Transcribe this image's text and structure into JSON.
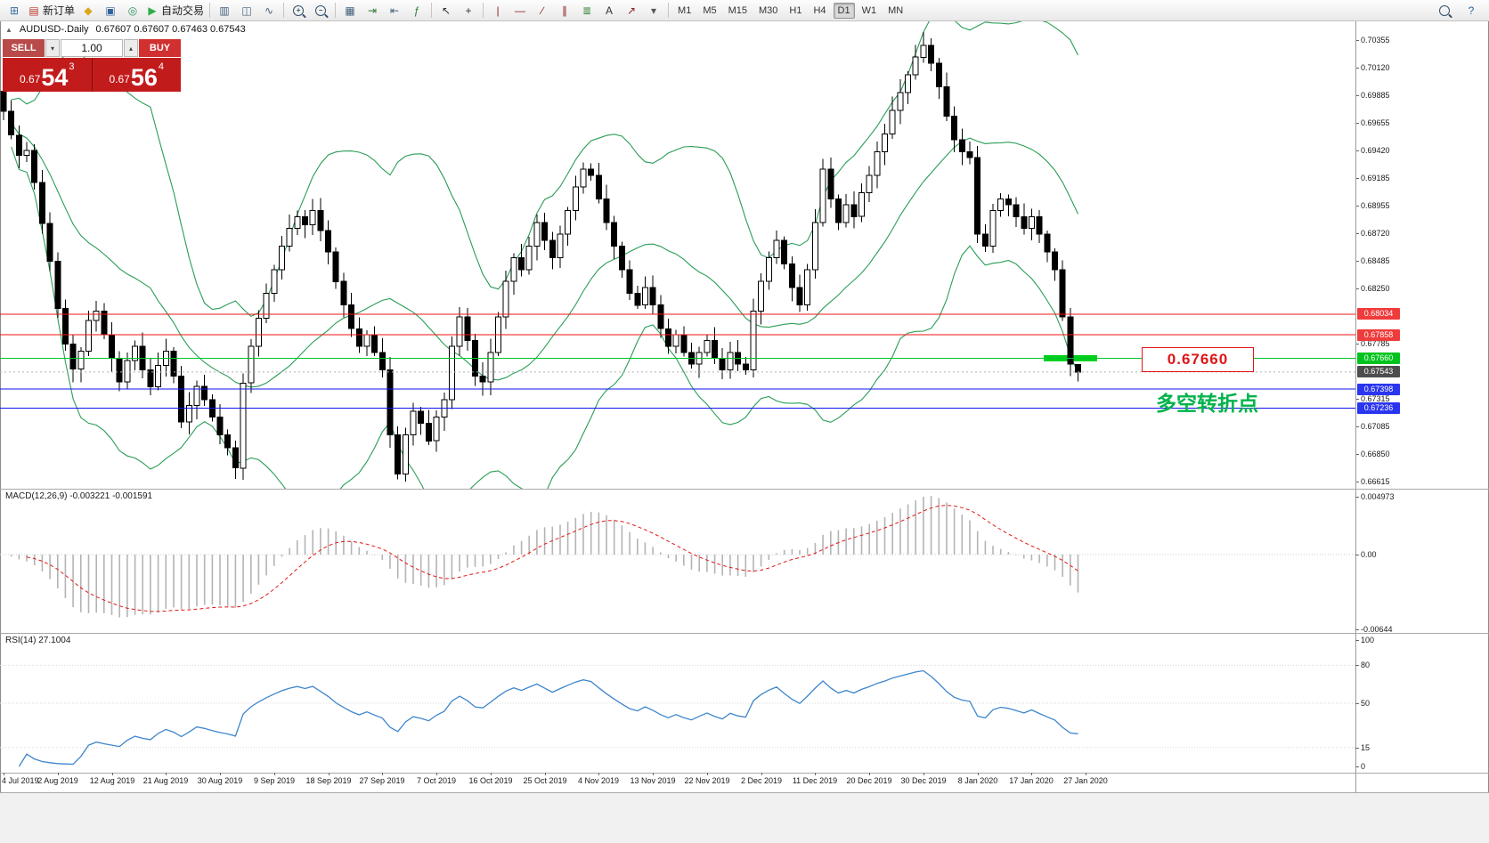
{
  "toolbar": {
    "groups": [
      {
        "items": [
          {
            "name": "new-chart",
            "glyph": "⊞",
            "color": "#3a6ea5"
          },
          {
            "name": "new-order",
            "glyph": "▤",
            "color": "#c0392b",
            "label": "新订单"
          },
          {
            "name": "metaeditor",
            "glyph": "◆",
            "color": "#dba61a"
          },
          {
            "name": "market-watch",
            "glyph": "▣",
            "color": "#31639c"
          },
          {
            "name": "data-window",
            "glyph": "◎",
            "color": "#2e8f5a"
          },
          {
            "name": "autotrading",
            "glyph": "▶",
            "color": "#2fae4a",
            "label": "自动交易"
          }
        ]
      },
      {
        "items": [
          {
            "name": "bar-chart-type",
            "glyph": "▥",
            "color": "#44617d"
          },
          {
            "name": "candlestick-chart-type",
            "glyph": "◫",
            "color": "#44617d"
          },
          {
            "name": "line-chart-type",
            "glyph": "∿",
            "color": "#44617d"
          }
        ]
      },
      {
        "items": [
          {
            "name": "zoom-in",
            "glyph": "MAG",
            "sub": "+"
          },
          {
            "name": "zoom-out",
            "glyph": "MAG",
            "sub": "−"
          }
        ]
      },
      {
        "items": [
          {
            "name": "tile-windows",
            "glyph": "▦",
            "color": "#44617d"
          },
          {
            "name": "auto-scroll",
            "glyph": "⇥",
            "color": "#2e7d32"
          },
          {
            "name": "chart-shift",
            "glyph": "⇤",
            "color": "#44617d"
          },
          {
            "name": "indicators-list",
            "glyph": "ƒ",
            "color": "#2e7d32"
          }
        ]
      },
      {
        "items": [
          {
            "name": "cursor",
            "glyph": "↖",
            "color": "#333333"
          },
          {
            "name": "crosshair",
            "glyph": "+",
            "color": "#333333"
          }
        ]
      },
      {
        "items": [
          {
            "name": "vertical-line",
            "glyph": "|",
            "color": "#8c1d1d"
          },
          {
            "name": "horizontal-line",
            "glyph": "—",
            "color": "#8c1d1d"
          },
          {
            "name": "trendline",
            "glyph": "∕",
            "color": "#8c1d1d"
          },
          {
            "name": "equidistant-channel",
            "glyph": "∥",
            "color": "#8c1d1d"
          },
          {
            "name": "fibonacci",
            "glyph": "≣",
            "color": "#2e7d32"
          },
          {
            "name": "text-label",
            "glyph": "A",
            "color": "#333333"
          },
          {
            "name": "arrow-object",
            "glyph": "↗",
            "color": "#8c1d1d"
          },
          {
            "name": "objects-dropdown",
            "glyph": "▾",
            "color": "#555555"
          }
        ]
      }
    ],
    "timeframes": [
      "M1",
      "M5",
      "M15",
      "M30",
      "H1",
      "H4",
      "D1",
      "W1",
      "MN"
    ],
    "active_timeframe": "D1",
    "right_items": [
      {
        "name": "symbol-search",
        "glyph": "MAG",
        "sub": ""
      },
      {
        "name": "help",
        "glyph": "?",
        "color": "#31639c"
      }
    ]
  },
  "chart": {
    "collapse_arrow": "▲",
    "title": "AUDUSD-.Daily",
    "ohlc": "0.67607 0.67607 0.67463 0.67543"
  },
  "trade_panel": {
    "sell_label": "SELL",
    "buy_label": "BUY",
    "volume": "1.00",
    "spin_down": "▾",
    "spin_up": "▴",
    "sell_big": "0.67",
    "sell_pips": "54",
    "sell_sup": "3",
    "buy_big": "0.67",
    "buy_pips": "56",
    "buy_sup": "4"
  },
  "price_axis": {
    "labels": [
      "0.70355",
      "0.70120",
      "0.69885",
      "0.69655",
      "0.69420",
      "0.69185",
      "0.68955",
      "0.68720",
      "0.68485",
      "0.68250",
      "0.68020",
      "0.67785",
      "0.67550",
      "0.67315",
      "0.67085",
      "0.66850",
      "0.66615"
    ],
    "badges": [
      {
        "text": "0.68034",
        "bg": "#ef3b3b"
      },
      {
        "text": "0.67858",
        "bg": "#ef3b3b"
      },
      {
        "text": "0.67660",
        "bg": "#00c41e"
      },
      {
        "text": "0.67543",
        "bg": "#4d4d4d"
      },
      {
        "text": "0.67398",
        "bg": "#2a35ef"
      },
      {
        "text": "0.67236",
        "bg": "#2a35ef"
      }
    ]
  },
  "macd": {
    "label": "MACD(12,26,9) -0.003221 -0.001591",
    "axis": [
      "0.004973",
      "0.00",
      "-0.00644"
    ]
  },
  "rsi": {
    "label": "RSI(14) 27.1004",
    "axis": [
      "100",
      "80",
      "50",
      "15",
      "0"
    ],
    "levels": [
      80,
      50,
      15
    ]
  },
  "annotations": {
    "price_label": "0.67660",
    "turning_text": "多空转折点"
  },
  "colors": {
    "bull": "#ffffff",
    "bear": "#000000",
    "outline": "#000000",
    "bollinger": "#2a9d56",
    "macd_hist": "#b4b4b4",
    "macd_signal": "#e21717",
    "rsi": "#3f86cc",
    "current_price_line": "#b0b0b0"
  },
  "chart_data": {
    "type": "candlestick",
    "symbol": "AUDUSD",
    "timeframe": "Daily",
    "ylim": [
      0.66615,
      0.70355
    ],
    "closes": [
      0.6975,
      0.6955,
      0.6938,
      0.6942,
      0.6915,
      0.688,
      0.6848,
      0.6808,
      0.6778,
      0.6757,
      0.6772,
      0.6798,
      0.6806,
      0.6786,
      0.6766,
      0.6746,
      0.6764,
      0.6776,
      0.6756,
      0.6742,
      0.676,
      0.6772,
      0.6751,
      0.6712,
      0.6726,
      0.6742,
      0.6731,
      0.6716,
      0.6701,
      0.669,
      0.6673,
      0.6745,
      0.6776,
      0.68,
      0.6821,
      0.6841,
      0.6861,
      0.6876,
      0.6886,
      0.6879,
      0.6891,
      0.6874,
      0.6856,
      0.6831,
      0.6811,
      0.6791,
      0.6776,
      0.6786,
      0.6771,
      0.6756,
      0.6701,
      0.6668,
      0.6701,
      0.6721,
      0.6711,
      0.6696,
      0.6716,
      0.6731,
      0.6776,
      0.6801,
      0.6781,
      0.6751,
      0.6746,
      0.6771,
      0.6801,
      0.6831,
      0.6851,
      0.6841,
      0.6861,
      0.6881,
      0.6866,
      0.6851,
      0.6871,
      0.6891,
      0.6911,
      0.6926,
      0.6921,
      0.6901,
      0.6881,
      0.6861,
      0.6841,
      0.6821,
      0.6811,
      0.6826,
      0.6811,
      0.6791,
      0.6776,
      0.6786,
      0.6771,
      0.6761,
      0.6771,
      0.6781,
      0.6766,
      0.6756,
      0.6771,
      0.6761,
      0.6756,
      0.6806,
      0.6831,
      0.6851,
      0.6866,
      0.6846,
      0.6826,
      0.6811,
      0.6841,
      0.6881,
      0.6926,
      0.6901,
      0.6881,
      0.6896,
      0.6886,
      0.6906,
      0.6921,
      0.6941,
      0.6956,
      0.6976,
      0.6991,
      0.7006,
      0.7021,
      0.7031,
      0.7016,
      0.6996,
      0.6971,
      0.6951,
      0.6941,
      0.6936,
      0.6871,
      0.6861,
      0.6891,
      0.6901,
      0.6896,
      0.6886,
      0.6876,
      0.6886,
      0.6871,
      0.6856,
      0.6841,
      0.6801,
      0.6761,
      0.67543
    ],
    "last_ohlc": [
      0.67607,
      0.67607,
      0.67463,
      0.67543
    ],
    "x_labels": [
      "4 Jul 2019",
      "2 Aug 2019",
      "12 Aug 2019",
      "21 Aug 2019",
      "30 Aug 2019",
      "9 Sep 2019",
      "18 Sep 2019",
      "27 Sep 2019",
      "7 Oct 2019",
      "16 Oct 2019",
      "25 Oct 2019",
      "4 Nov 2019",
      "13 Nov 2019",
      "22 Nov 2019",
      "2 Dec 2019",
      "11 Dec 2019",
      "20 Dec 2019",
      "30 Dec 2019",
      "8 Jan 2020",
      "17 Jan 2020",
      "27 Jan 2020"
    ],
    "levels": [
      {
        "price": 0.68034,
        "color": "#f21313"
      },
      {
        "price": 0.67858,
        "color": "#f21313"
      },
      {
        "price": 0.6766,
        "color": "#00c42a"
      },
      {
        "price": 0.67398,
        "color": "#1111ee"
      },
      {
        "price": 0.67236,
        "color": "#1111ee"
      }
    ],
    "current_price": 0.67543,
    "highlight": {
      "x": 1172,
      "width": 60,
      "price": 0.6766,
      "thickness": 7,
      "color": "#00d01c"
    },
    "indicators": {
      "bollinger": {
        "period": 20,
        "deviation": 2
      },
      "macd": {
        "fast": 12,
        "slow": 26,
        "signal": 9,
        "value": -0.003221,
        "signal_value": -0.001591
      },
      "rsi": {
        "period": 14,
        "value": 27.1004
      }
    }
  }
}
